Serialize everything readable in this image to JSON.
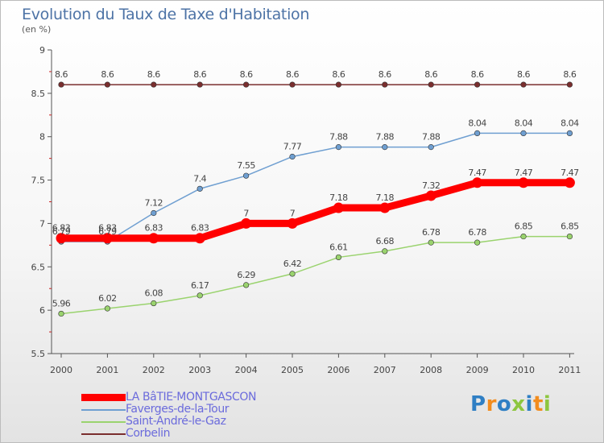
{
  "chart_data": {
    "type": "line",
    "title": "Evolution du Taux de Taxe d'Habitation",
    "subtitle": "(en %)",
    "categories": [
      "2000",
      "2001",
      "2002",
      "2003",
      "2004",
      "2005",
      "2006",
      "2007",
      "2008",
      "2009",
      "2010",
      "2011"
    ],
    "ylim": [
      5.5,
      9
    ],
    "yticks": [
      "5.5",
      "6",
      "6.5",
      "7",
      "7.5",
      "8",
      "8.5",
      "9"
    ],
    "grid": false,
    "legend_position": "bottom-left",
    "series": [
      {
        "name": "Corbelin",
        "color": "#7a2e2e",
        "values": [
          8.6,
          8.6,
          8.6,
          8.6,
          8.6,
          8.6,
          8.6,
          8.6,
          8.6,
          8.6,
          8.6,
          8.6
        ],
        "labels": [
          "8.6",
          "8.6",
          "8.6",
          "8.6",
          "8.6",
          "8.6",
          "8.6",
          "8.6",
          "8.6",
          "8.6",
          "8.6",
          "8.6"
        ]
      },
      {
        "name": "Faverges-de-la-Tour",
        "color": "#6f9fd1",
        "values": [
          6.79,
          6.79,
          7.12,
          7.4,
          7.55,
          7.77,
          7.88,
          7.88,
          7.88,
          8.04,
          8.04,
          8.04
        ],
        "labels": [
          "6.79",
          "6.79",
          "7.12",
          "7.4",
          "7.55",
          "7.77",
          "7.88",
          "7.88",
          "7.88",
          "8.04",
          "8.04",
          "8.04"
        ]
      },
      {
        "name": "Saint-André-le-Gaz",
        "color": "#9ad36e",
        "values": [
          5.96,
          6.02,
          6.08,
          6.17,
          6.29,
          6.42,
          6.61,
          6.68,
          6.78,
          6.78,
          6.85,
          6.85
        ],
        "labels": [
          "5.96",
          "6.02",
          "6.08",
          "6.17",
          "6.29",
          "6.42",
          "6.61",
          "6.68",
          "6.78",
          "6.78",
          "6.85",
          "6.85"
        ]
      },
      {
        "name": "LA BâTIE-MONTGASCON",
        "color": "#ff0000",
        "values": [
          6.83,
          6.83,
          6.83,
          6.83,
          7,
          7,
          7.18,
          7.18,
          7.32,
          7.47,
          7.47,
          7.47
        ],
        "labels": [
          "6.83",
          "6.83",
          "6.83",
          "6.83",
          "7",
          "7",
          "7.18",
          "7.18",
          "7.32",
          "7.47",
          "7.47",
          "7.47"
        ],
        "thick": true
      }
    ],
    "legend_order": [
      "LA BâTIE-MONTGASCON",
      "Faverges-de-la-Tour",
      "Saint-André-le-Gaz",
      "Corbelin"
    ]
  },
  "logo": {
    "text": "Proxiti",
    "colors": [
      "#2f7fc4",
      "#f28c1e",
      "#2f7fc4",
      "#8dc63f",
      "#2f7fc4",
      "#f28c1e",
      "#8dc63f"
    ]
  }
}
